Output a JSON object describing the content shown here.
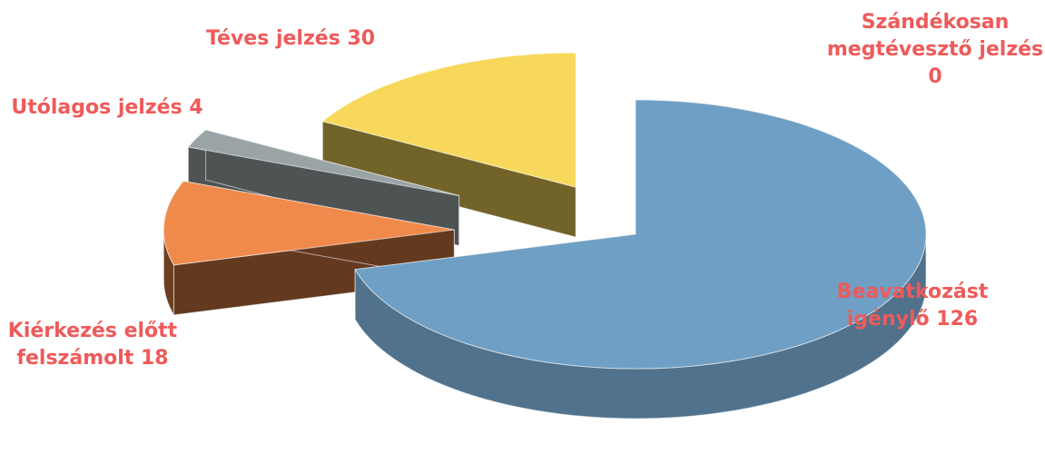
{
  "chart_data": {
    "type": "pie",
    "style": "3d-exploded",
    "slices": [
      {
        "name": "Beavatkozást igénylő",
        "value": 126,
        "label_lines": [
          "Beavatkozást",
          "igénylő 126"
        ],
        "color": "#6f9fc4"
      },
      {
        "name": "Kiérkezés előtt felszámolt",
        "value": 18,
        "label_lines": [
          "Kiérkezés előtt",
          "felszámolt  18"
        ],
        "color": "#f08a4b"
      },
      {
        "name": "Utólagos jelzés",
        "value": 4,
        "label_lines": [
          "Utólagos jelzés 4"
        ],
        "color": "#9aa3a6"
      },
      {
        "name": "Téves jelzés",
        "value": 30,
        "label_lines": [
          "Téves jelzés 30"
        ],
        "color": "#f7d85a"
      },
      {
        "name": "Szándékosan megtévesztő jelzés",
        "value": 0,
        "label_lines": [
          "Szándékosan",
          "megtévesztő jelzés",
          "0"
        ],
        "color": "#c0504d"
      }
    ],
    "label_color": "#ef5a5a",
    "title": ""
  }
}
